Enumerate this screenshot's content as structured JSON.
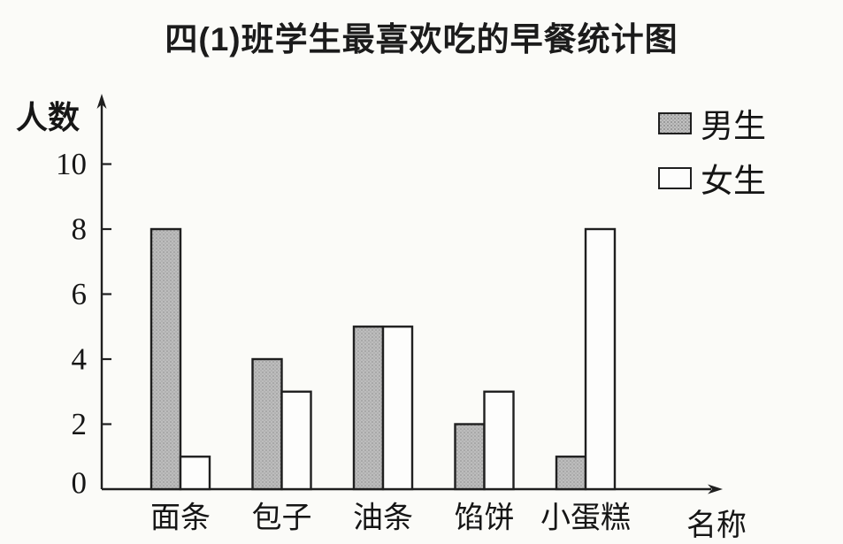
{
  "page": {
    "background": "#fbfbf8"
  },
  "chart_data": {
    "type": "bar",
    "title": "四(1)班学生最喜欢吃的早餐统计图",
    "ylabel": "人数",
    "xlabel": "名称",
    "categories": [
      "面条",
      "包子",
      "油条",
      "馅饼",
      "小蛋糕"
    ],
    "series": [
      {
        "name": "男生",
        "values": [
          8,
          4,
          5,
          2,
          1
        ],
        "fill": "stipple-gray",
        "color": "#bdbdbd"
      },
      {
        "name": "女生",
        "values": [
          1,
          3,
          5,
          3,
          8
        ],
        "fill": "white",
        "color": "#fdfdfc"
      }
    ],
    "yticks": [
      0,
      2,
      4,
      6,
      8,
      10
    ],
    "ylim": [
      0,
      12
    ],
    "grid": false,
    "legend_position": "top-right",
    "axis_color": "#1f1f1f",
    "bar_border_color": "#1f1f1f"
  }
}
